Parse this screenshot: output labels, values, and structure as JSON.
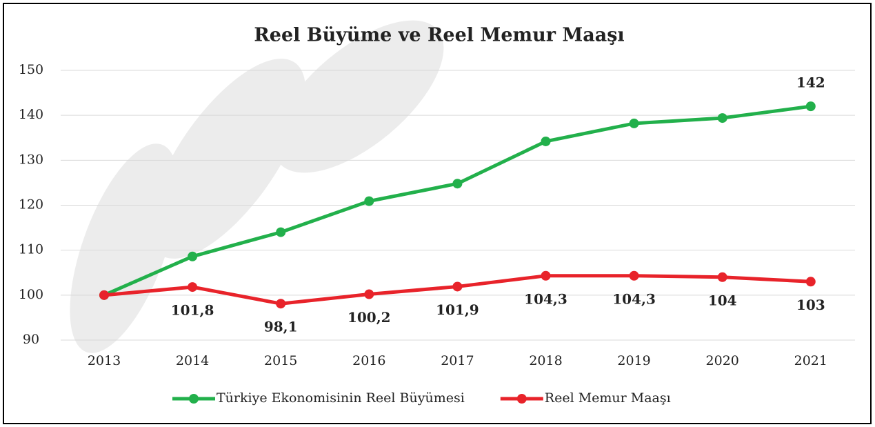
{
  "chart_data": {
    "type": "line",
    "title": "Reel Büyüme ve Reel Memur Maaşı",
    "categories": [
      "2013",
      "2014",
      "2015",
      "2016",
      "2017",
      "2018",
      "2019",
      "2020",
      "2021"
    ],
    "series": [
      {
        "name": "Türkiye Ekonomisinin Reel Büyümesi",
        "color": "#22b04b",
        "values": [
          100,
          108.6,
          114,
          120.9,
          124.8,
          134.2,
          138.2,
          139.4,
          142
        ],
        "value_labels": [
          null,
          null,
          null,
          null,
          null,
          null,
          null,
          null,
          "142"
        ]
      },
      {
        "name": "Reel Memur Maaşı",
        "color": "#e8232a",
        "values": [
          100,
          101.8,
          98.1,
          100.2,
          101.9,
          104.3,
          104.3,
          104,
          103
        ],
        "value_labels": [
          null,
          "101,8",
          "98,1",
          "100,2",
          "101,9",
          "104,3",
          "104,3",
          "104",
          "103"
        ]
      }
    ],
    "ylim": [
      90,
      150
    ],
    "yticks": [
      90,
      100,
      110,
      120,
      130,
      140,
      150
    ],
    "grid": true,
    "legend": "bottom"
  }
}
